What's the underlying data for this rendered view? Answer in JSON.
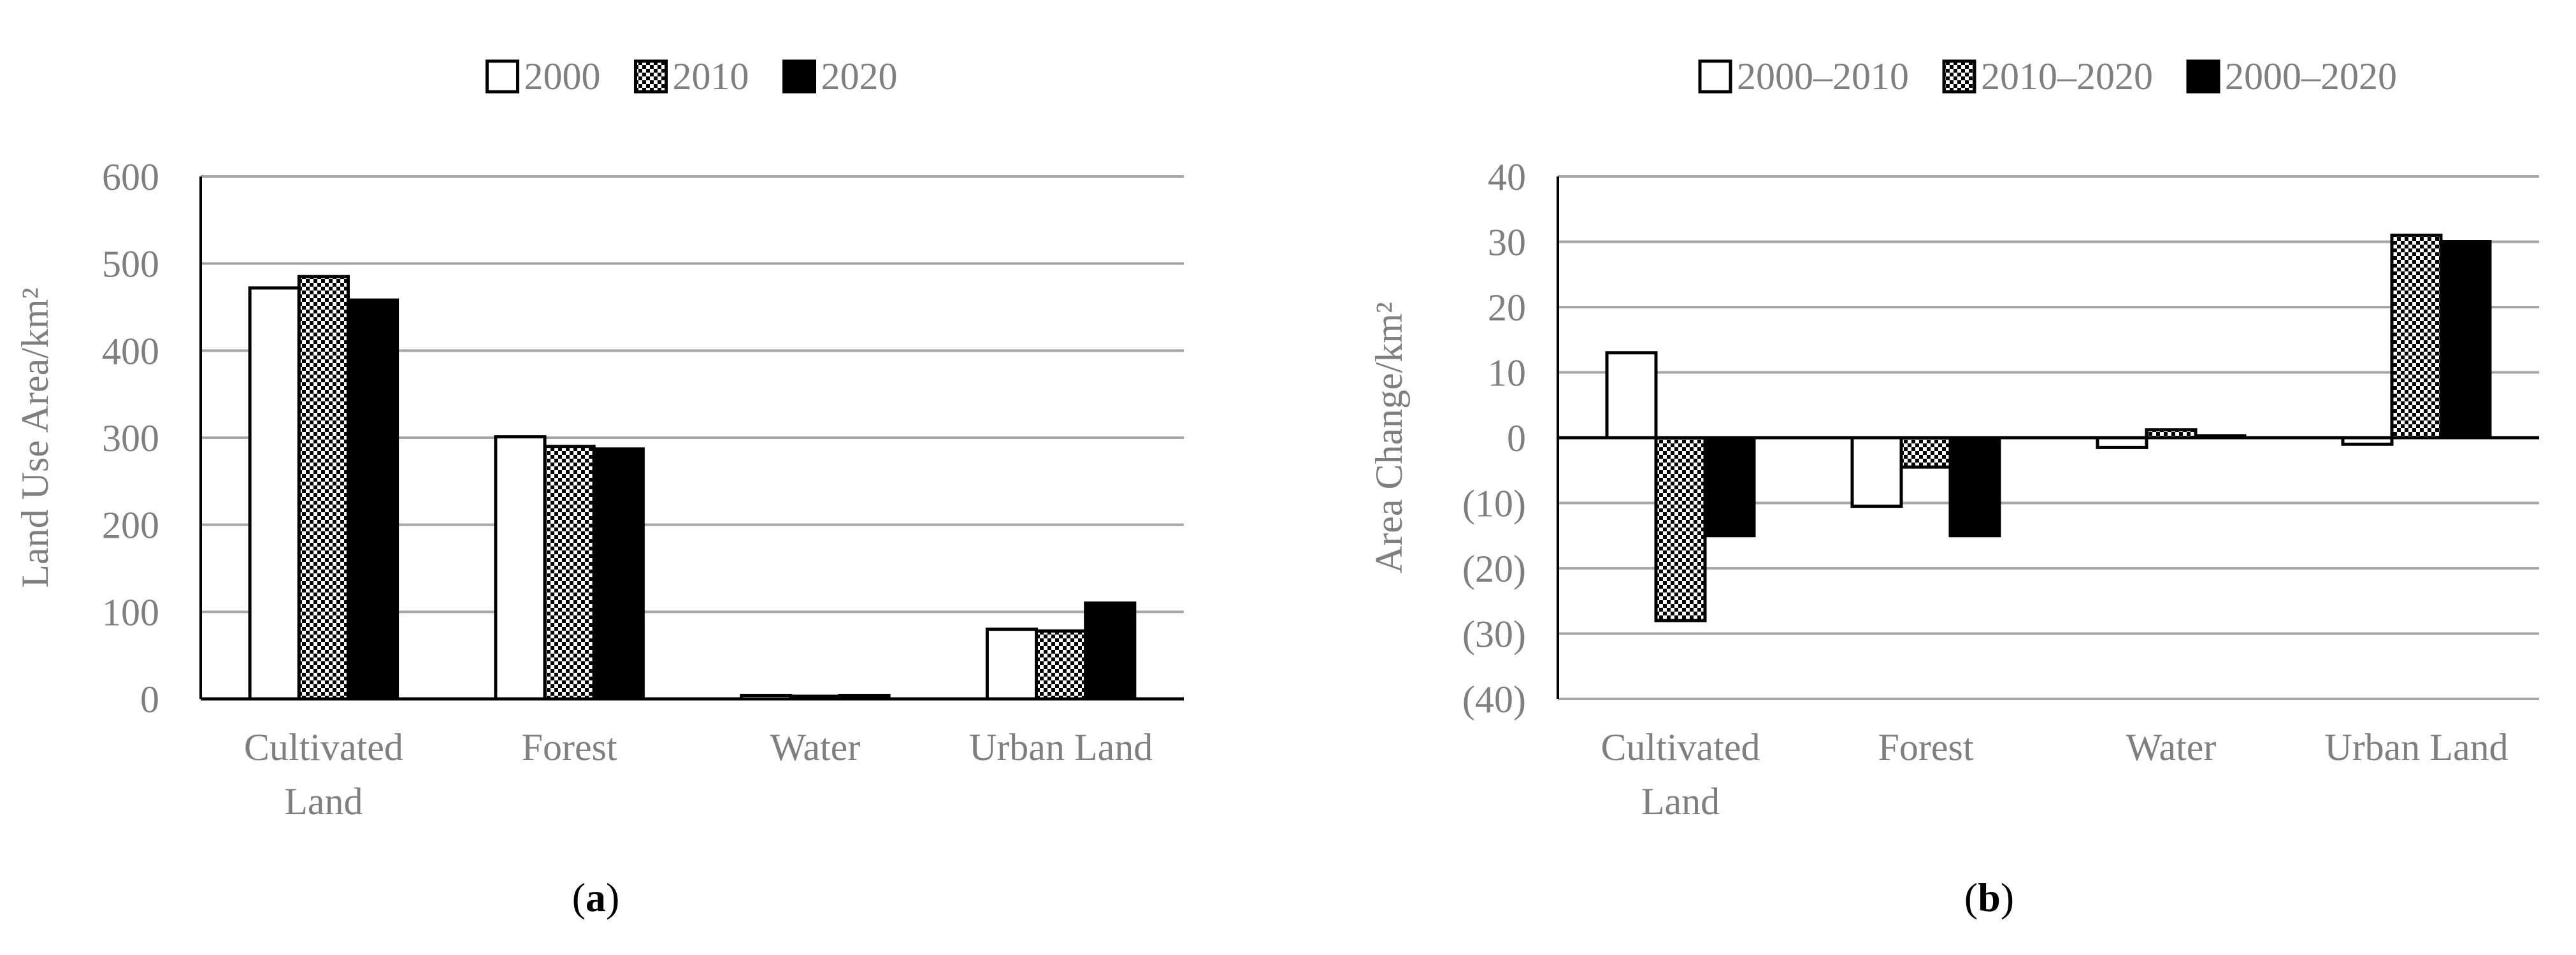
{
  "colors": {
    "text": "#7f7f7f",
    "grid": "#a6a6a6",
    "axis": "#000000",
    "bar_fill_dark": "#000000",
    "bar_fill_light": "#ffffff"
  },
  "chart_data": [
    {
      "id": "a",
      "type": "bar",
      "panel_label": "a",
      "title": "",
      "xlabel": "",
      "ylabel": "Land Use Area/km²",
      "categories": [
        "Cultivated Land",
        "Forest",
        "Water",
        "Urban Land"
      ],
      "category_lines": [
        [
          "Cultivated",
          "Land"
        ],
        [
          "Forest"
        ],
        [
          "Water"
        ],
        [
          "Urban Land"
        ]
      ],
      "series": [
        {
          "name": "2000",
          "pattern": "white",
          "values": [
            472,
            301,
            4,
            80
          ]
        },
        {
          "name": "2010",
          "pattern": "checker",
          "values": [
            485,
            290,
            3,
            78
          ]
        },
        {
          "name": "2020",
          "pattern": "black",
          "values": [
            458,
            287,
            4,
            110
          ]
        }
      ],
      "ylim": [
        0,
        600
      ],
      "yticks": [
        0,
        100,
        200,
        300,
        400,
        500,
        600
      ],
      "ytick_labels": [
        "0",
        "100",
        "200",
        "300",
        "400",
        "500",
        "600"
      ],
      "grid": true,
      "legend_position": "top-center"
    },
    {
      "id": "b",
      "type": "bar",
      "panel_label": "b",
      "title": "",
      "xlabel": "",
      "ylabel": "Area Change/km²",
      "categories": [
        "Cultivated Land",
        "Forest",
        "Water",
        "Urban Land"
      ],
      "category_lines": [
        [
          "Cultivated",
          "Land"
        ],
        [
          "Forest"
        ],
        [
          "Water"
        ],
        [
          "Urban Land"
        ]
      ],
      "series": [
        {
          "name": "2000–2010",
          "pattern": "white",
          "values": [
            13,
            -10.5,
            -1.5,
            -1
          ]
        },
        {
          "name": "2010–2020",
          "pattern": "checker",
          "values": [
            -28,
            -4.5,
            1.2,
            31
          ]
        },
        {
          "name": "2000–2020",
          "pattern": "black",
          "values": [
            -15,
            -15,
            0.3,
            30
          ]
        }
      ],
      "ylim": [
        -40,
        40
      ],
      "yticks": [
        -40,
        -30,
        -20,
        -10,
        0,
        10,
        20,
        30,
        40
      ],
      "ytick_labels": [
        "(40)",
        "(30)",
        "(20)",
        "(10)",
        "0",
        "10",
        "20",
        "30",
        "40"
      ],
      "grid": true,
      "legend_position": "top-center"
    }
  ]
}
